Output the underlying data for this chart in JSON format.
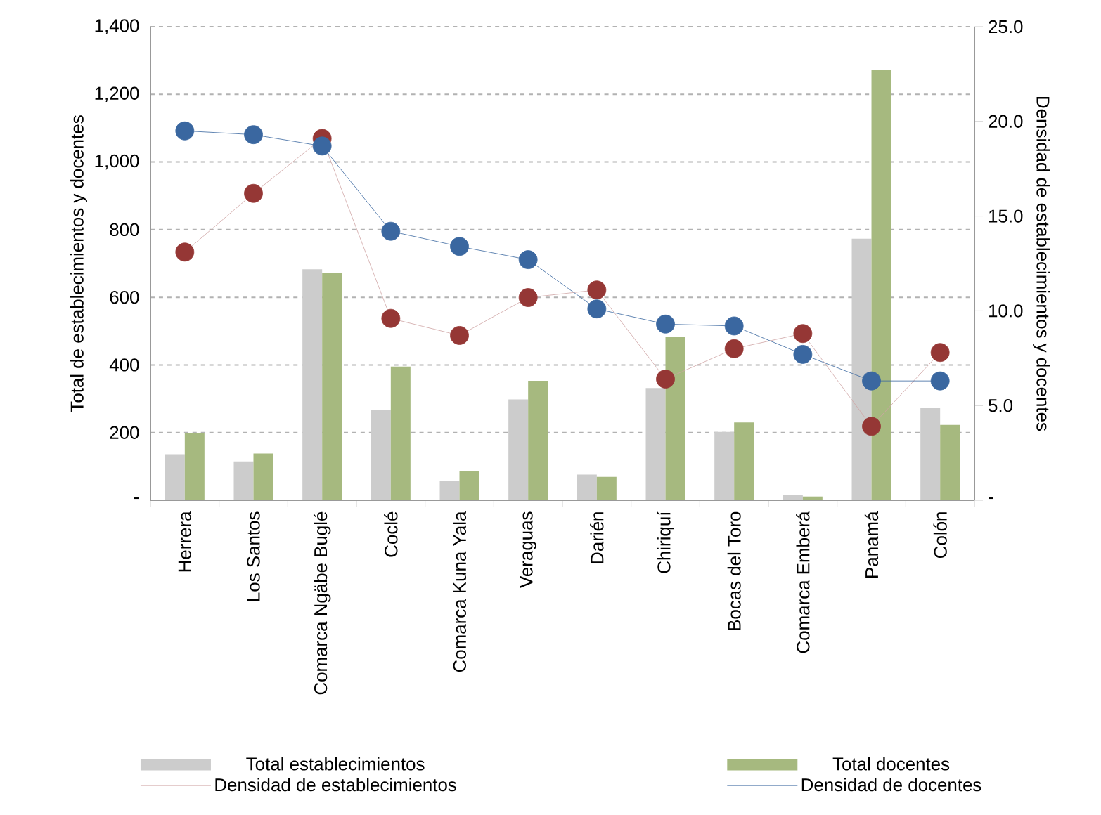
{
  "chart_data": {
    "type": "bar",
    "categories": [
      "Herrera",
      "Los Santos",
      "Comarca Ngäbe Buglé",
      "Coclé",
      "Comarca Kuna Yala",
      "Veraguas",
      "Darién",
      "Chiriquí",
      "Bocas del Toro",
      "Comarca Emberá",
      "Panamá",
      "Colón"
    ],
    "ylabel": "Total de establecimientos y docentes",
    "y2label": "Densidad de establecimientos y docentes",
    "ylim": [
      0,
      1400
    ],
    "yticks": [
      {
        "value": 0,
        "label": "-"
      },
      200,
      400,
      600,
      800,
      {
        "value": 1000,
        "label": "1,000"
      },
      {
        "value": 1200,
        "label": "1,200"
      },
      {
        "value": 1400,
        "label": "1,400"
      }
    ],
    "y2lim": [
      0,
      25
    ],
    "y2ticks": [
      {
        "value": 0,
        "label": "-"
      },
      {
        "value": 5,
        "label": "5.0"
      },
      {
        "value": 10,
        "label": "10.0"
      },
      {
        "value": 15,
        "label": "15.0"
      },
      {
        "value": 20,
        "label": "20.0"
      },
      {
        "value": 25,
        "label": "25.0"
      }
    ],
    "grid": "y",
    "legend": "bottom",
    "series": [
      {
        "name": "Total establecimientos",
        "color": "#cccccc",
        "values": [
          136,
          115,
          683,
          267,
          57,
          298,
          76,
          332,
          202,
          15,
          773,
          274
        ]
      },
      {
        "name": "Total docentes",
        "color": "#a6b97f",
        "values": [
          198,
          138,
          672,
          395,
          87,
          353,
          69,
          482,
          230,
          11,
          1271,
          223
        ]
      },
      {
        "name": "Densidad de establecimientos",
        "type": "line",
        "axis": "y2",
        "color": "#953735",
        "marker": "circle",
        "line_style": "solid",
        "values": [
          13.1,
          16.2,
          19.1,
          9.6,
          8.7,
          10.7,
          11.1,
          6.4,
          8.0,
          8.8,
          3.9,
          7.8
        ]
      },
      {
        "name": "Densidad de docentes",
        "type": "line",
        "axis": "y2",
        "color": "#3a67a0",
        "marker": "circle",
        "line_style": "solid",
        "values": [
          19.5,
          19.3,
          18.7,
          14.2,
          13.4,
          12.7,
          10.1,
          9.3,
          9.2,
          7.7,
          6.3,
          6.3
        ]
      }
    ]
  }
}
